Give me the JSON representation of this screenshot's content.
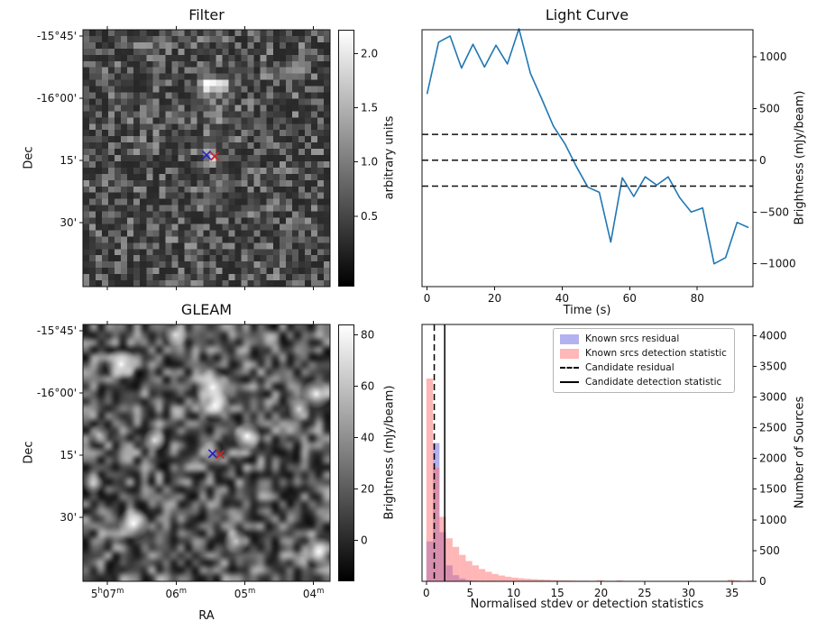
{
  "chart_data": [
    {
      "id": "filter",
      "type": "heatmap",
      "title": "Filter",
      "ylabel": "Dec",
      "yticks": {
        "labels": [
          "-15°45'",
          "-16°00'",
          "15'",
          "30'"
        ],
        "fracs": [
          0.025,
          0.267,
          0.509,
          0.751
        ]
      },
      "xticks": {
        "fracs": [
          0.099,
          0.377,
          0.655,
          0.933
        ]
      },
      "colorbar": {
        "label": "arbitrary units",
        "ticks": [
          0.5,
          1.0,
          1.5,
          2.0
        ],
        "tick_labels": [
          "0.5",
          "1.0",
          "1.5",
          "2.0"
        ],
        "vmin": -0.15,
        "vmax": 2.22
      },
      "noise": {
        "seed": 3,
        "cols": 39,
        "rows": 41,
        "base": 0.22,
        "spread": 1.05
      },
      "sources": [
        {
          "x": 0.505,
          "y": 0.215,
          "r": 0.035,
          "amp": 1.9
        },
        {
          "x": 0.565,
          "y": 0.22,
          "r": 0.03,
          "amp": 1.7
        },
        {
          "x": 0.53,
          "y": 0.32,
          "r": 0.045,
          "amp": 0.5
        },
        {
          "x": 0.535,
          "y": 0.42,
          "r": 0.04,
          "amp": 0.3
        },
        {
          "x": 0.52,
          "y": 0.5,
          "r": 0.028,
          "amp": 1.0
        }
      ],
      "markers": [
        {
          "shape": "x",
          "color": "#2222cc",
          "x": 0.5,
          "y": 0.488
        },
        {
          "shape": "x",
          "color": "#cc2222",
          "x": 0.533,
          "y": 0.493
        }
      ]
    },
    {
      "id": "light_curve",
      "type": "line",
      "title": "Light Curve",
      "xlabel": "Time (s)",
      "ylabel": "Brightness (mJy/beam)",
      "xlim": [
        -1.5,
        96.5
      ],
      "ylim": [
        -1220,
        1260
      ],
      "xticks": [
        0,
        20,
        40,
        60,
        80
      ],
      "xtick_labels": [
        "0",
        "20",
        "40",
        "60",
        "80"
      ],
      "yticks": [
        1000,
        500,
        0,
        -500,
        -1000
      ],
      "ytick_labels": [
        "1000",
        "500",
        "0",
        "−500",
        "−1000"
      ],
      "line_color": "#1f77b4",
      "x": [
        0,
        3.4,
        6.8,
        10.2,
        13.6,
        17,
        20.4,
        23.8,
        27.2,
        30.6,
        34,
        37.4,
        40.8,
        44.2,
        47.6,
        51,
        54.4,
        57.8,
        61.2,
        64.6,
        68,
        71.4,
        74.8,
        78.2,
        81.6,
        85,
        88.4,
        91.8,
        95.2
      ],
      "y": [
        640,
        1140,
        1200,
        890,
        1120,
        900,
        1110,
        930,
        1270,
        840,
        590,
        330,
        160,
        -60,
        -260,
        -310,
        -790,
        -170,
        -350,
        -160,
        -240,
        -160,
        -360,
        -500,
        -460,
        -1000,
        -940,
        -600,
        -650
      ],
      "hlines": [
        250,
        0,
        -250
      ]
    },
    {
      "id": "gleam",
      "type": "heatmap",
      "title": "GLEAM",
      "xlabel": "RA",
      "ylabel": "Dec",
      "yticks": {
        "labels": [
          "-15°45'",
          "-16°00'",
          "15'",
          "30'"
        ],
        "fracs": [
          0.025,
          0.267,
          0.509,
          0.751
        ]
      },
      "xticks": {
        "fracs": [
          0.099,
          0.377,
          0.655,
          0.933
        ],
        "segments": [
          [
            [
              "5",
              "h"
            ],
            [
              "07",
              "m"
            ]
          ],
          [
            [
              "06",
              "m"
            ]
          ],
          [
            [
              "05",
              "m"
            ]
          ],
          [
            [
              "04",
              "m"
            ]
          ]
        ]
      },
      "colorbar": {
        "label": "Brightness (mJy/beam)",
        "ticks": [
          0,
          20,
          40,
          60,
          80
        ],
        "tick_labels": [
          "0",
          "20",
          "40",
          "60",
          "80"
        ],
        "vmin": -16,
        "vmax": 84
      },
      "noise": {
        "seed": 9,
        "cols": 34,
        "rows": 35,
        "base": 18,
        "spread": 165
      },
      "sources": [
        {
          "x": 0.155,
          "y": 0.155,
          "r": 0.035,
          "amp": 1.0
        },
        {
          "x": 0.375,
          "y": 0.04,
          "r": 0.026,
          "amp": 0.8
        },
        {
          "x": 0.525,
          "y": 0.245,
          "r": 0.04,
          "amp": 1.0
        },
        {
          "x": 0.535,
          "y": 0.315,
          "r": 0.033,
          "amp": 0.95
        },
        {
          "x": 0.945,
          "y": 0.27,
          "r": 0.033,
          "amp": 0.95
        },
        {
          "x": 0.875,
          "y": 0.33,
          "r": 0.026,
          "amp": 0.8
        },
        {
          "x": 0.665,
          "y": 0.435,
          "r": 0.031,
          "amp": 1.0
        },
        {
          "x": 0.29,
          "y": 0.45,
          "r": 0.026,
          "amp": 0.85
        },
        {
          "x": 0.52,
          "y": 0.495,
          "r": 0.024,
          "amp": 0.7
        },
        {
          "x": 0.065,
          "y": 0.43,
          "r": 0.024,
          "amp": 0.6
        },
        {
          "x": 0.205,
          "y": 0.775,
          "r": 0.035,
          "amp": 1.0
        },
        {
          "x": 0.62,
          "y": 0.845,
          "r": 0.028,
          "amp": 0.75
        },
        {
          "x": 0.955,
          "y": 0.885,
          "r": 0.033,
          "amp": 0.95
        },
        {
          "x": 0.04,
          "y": 0.62,
          "r": 0.024,
          "amp": 0.6
        }
      ],
      "markers": [
        {
          "shape": "x",
          "color": "#2222cc",
          "x": 0.525,
          "y": 0.503
        },
        {
          "shape": "x",
          "color": "#cc2222",
          "x": 0.555,
          "y": 0.506
        }
      ]
    },
    {
      "id": "stats_hist",
      "type": "histogram",
      "xlabel": "Normalised stdev or detection statistics",
      "ylabel": "Number of Sources",
      "xlim": [
        -0.5,
        37.4
      ],
      "ylim": [
        0,
        4180
      ],
      "xticks": [
        0,
        5,
        10,
        15,
        20,
        25,
        30,
        35
      ],
      "yticks": [
        0,
        500,
        1000,
        1500,
        2000,
        2500,
        3000,
        3500,
        4000
      ],
      "bin_start": 0,
      "bin_width": 0.75,
      "series": [
        {
          "name": "Known srcs residual",
          "color": "#6464e1",
          "alpha": 0.5,
          "counts": [
            650,
            2250,
            800,
            260,
            100,
            45,
            20,
            10,
            5,
            3,
            2,
            1,
            1,
            0,
            0,
            0,
            0,
            0,
            0,
            0,
            0,
            0,
            0,
            0,
            0,
            0,
            0,
            0,
            0,
            0,
            0,
            0,
            0,
            0,
            0,
            0,
            0,
            0,
            0,
            0,
            0,
            0,
            0,
            0,
            0,
            0,
            0,
            0,
            0,
            0
          ]
        },
        {
          "name": "Known srcs detection statistic",
          "color": "#ff6e6e",
          "alpha": 0.5,
          "counts": [
            3300,
            1850,
            1050,
            700,
            560,
            430,
            330,
            260,
            200,
            155,
            120,
            95,
            75,
            60,
            50,
            42,
            35,
            30,
            25,
            20,
            18,
            15,
            12,
            10,
            10,
            8,
            20,
            8,
            6,
            15,
            5,
            4,
            3,
            3,
            2,
            2,
            2,
            1,
            1,
            1,
            1,
            1,
            1,
            1,
            0,
            1,
            25,
            15,
            0,
            12
          ]
        }
      ],
      "vlines": [
        {
          "name": "Candidate residual",
          "x": 0.9,
          "style": "dashed",
          "color": "#000000"
        },
        {
          "name": "Candidate detection statistic",
          "x": 2.1,
          "style": "solid",
          "color": "#000000"
        }
      ]
    }
  ]
}
